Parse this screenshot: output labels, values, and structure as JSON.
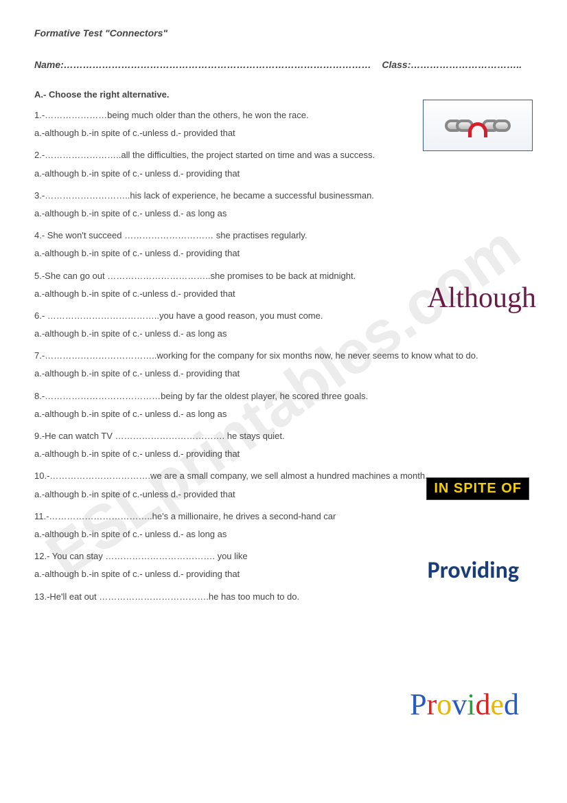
{
  "header": {
    "title": "Formative Test \"Connectors\"",
    "name_label": "Name:",
    "name_dots": "……………………………………………………………………………………",
    "class_label": "Class:",
    "class_dots": "…………………………….."
  },
  "section": {
    "title": "A.- Choose the right alternative."
  },
  "questions": [
    {
      "q": "1.-…………………being much older than the others, he won the race.",
      "opts": "a.-although  b.-in spite of   c.-unless   d.- provided that"
    },
    {
      "q": "2.-……………………..all the difficulties, the project started on time and was a success.",
      "opts": "a.-although   b.-in spite of    c.- unless    d.- providing that"
    },
    {
      "q": "3.-………………………..his lack of experience, he became a successful businessman.",
      "opts": "a.-although   b.-in spite of    c.- unless    d.- as long as"
    },
    {
      "q": "4.- She won't succeed ………………………… she practises regularly.",
      "opts": "a.-although   b.-in spite of    c.- unless    d.- providing that"
    },
    {
      "q": "5.-She can go out ……………………………..she promises to be back at midnight.",
      "opts": "a.-although  b.-in spite of   c.-unless   d.- provided that"
    },
    {
      "q": "6.- ………………………………..you have a good reason, you must come.",
      "opts": "a.-although   b.-in spite of    c.- unless    d.- as long as"
    },
    {
      "q": "7.-………………………………..working for the company for six months now, he never seems to know what to do.",
      "opts": "a.-although   b.-in spite of    c.- unless    d.- providing that"
    },
    {
      "q": "8.-…………………………………being by far the oldest player, he scored three goals.",
      "opts": "a.-although   b.-in spite of    c.- unless    d.- as long as"
    },
    {
      "q": "9.-He can watch TV ………………………………. he stays quiet.",
      "opts": "a.-although   b.-in spite of    c.- unless    d.- providing that"
    },
    {
      "q": "10.-…………………………….we are a small company, we sell almost a hundred machines a month.",
      "opts": "a.-although  b.-in spite of   c.-unless   d.- provided that"
    },
    {
      "q": "11.-……………………………..he's a millionaire, he drives a second-hand car",
      "opts": "a.-although   b.-in spite of    c.- unless    d.- as long as"
    },
    {
      "q": "12.- You can stay ………………………………. you like",
      "opts": "a.-although   b.-in spite of    c.- unless    d.- providing that"
    },
    {
      "q": "13.-He'll eat out ……………………………….he has too much to do.",
      "opts": ""
    }
  ],
  "decorations": {
    "watermark": "ESLprintables.com",
    "although": "Although",
    "inspite": "IN SPITE OF",
    "providing": "Providing",
    "provided": "Provided"
  },
  "styles": {
    "page_bg": "#ffffff",
    "text_color": "#444444",
    "body_fontsize": 13,
    "title_fontsize": 14,
    "watermark_color": "rgba(200,200,200,0.35)",
    "watermark_fontsize": 90,
    "watermark_angle_deg": -35,
    "chain_border_color": "#3a5a9a",
    "chain_red": "#d4202a",
    "although_color": "#6a1b45",
    "although_fontsize": 42,
    "inspite_bg": "#000000",
    "inspite_color": "#f5d000",
    "inspite_fontsize": 20,
    "providing_color": "#1a3d7a",
    "providing_fontsize": 34,
    "provided_fontsize": 44,
    "provided_colors": [
      "#2a5abf",
      "#d22",
      "#e6b800",
      "#2a5abf",
      "#2a9d3f",
      "#d22",
      "#e6b800",
      "#2a5abf"
    ]
  }
}
